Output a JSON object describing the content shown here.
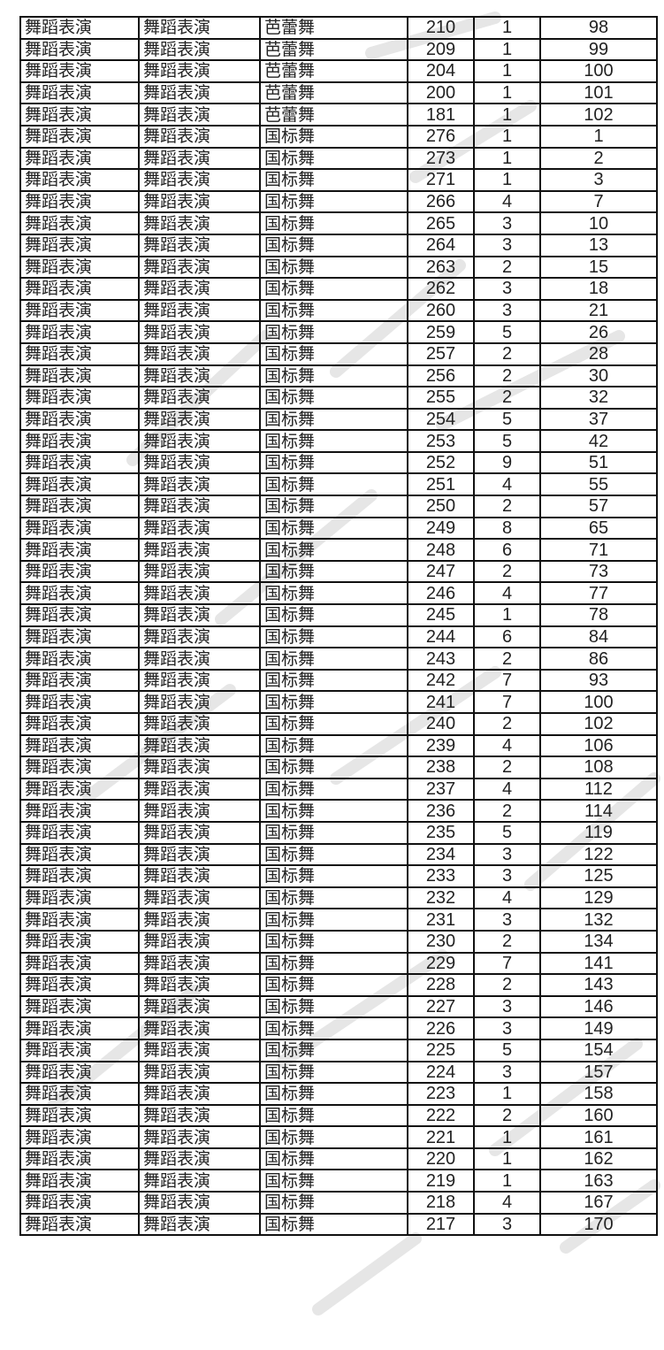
{
  "table": {
    "rows": [
      [
        "舞蹈表演",
        "舞蹈表演",
        "芭蕾舞",
        "210",
        "1",
        "98"
      ],
      [
        "舞蹈表演",
        "舞蹈表演",
        "芭蕾舞",
        "209",
        "1",
        "99"
      ],
      [
        "舞蹈表演",
        "舞蹈表演",
        "芭蕾舞",
        "204",
        "1",
        "100"
      ],
      [
        "舞蹈表演",
        "舞蹈表演",
        "芭蕾舞",
        "200",
        "1",
        "101"
      ],
      [
        "舞蹈表演",
        "舞蹈表演",
        "芭蕾舞",
        "181",
        "1",
        "102"
      ],
      [
        "舞蹈表演",
        "舞蹈表演",
        "国标舞",
        "276",
        "1",
        "1"
      ],
      [
        "舞蹈表演",
        "舞蹈表演",
        "国标舞",
        "273",
        "1",
        "2"
      ],
      [
        "舞蹈表演",
        "舞蹈表演",
        "国标舞",
        "271",
        "1",
        "3"
      ],
      [
        "舞蹈表演",
        "舞蹈表演",
        "国标舞",
        "266",
        "4",
        "7"
      ],
      [
        "舞蹈表演",
        "舞蹈表演",
        "国标舞",
        "265",
        "3",
        "10"
      ],
      [
        "舞蹈表演",
        "舞蹈表演",
        "国标舞",
        "264",
        "3",
        "13"
      ],
      [
        "舞蹈表演",
        "舞蹈表演",
        "国标舞",
        "263",
        "2",
        "15"
      ],
      [
        "舞蹈表演",
        "舞蹈表演",
        "国标舞",
        "262",
        "3",
        "18"
      ],
      [
        "舞蹈表演",
        "舞蹈表演",
        "国标舞",
        "260",
        "3",
        "21"
      ],
      [
        "舞蹈表演",
        "舞蹈表演",
        "国标舞",
        "259",
        "5",
        "26"
      ],
      [
        "舞蹈表演",
        "舞蹈表演",
        "国标舞",
        "257",
        "2",
        "28"
      ],
      [
        "舞蹈表演",
        "舞蹈表演",
        "国标舞",
        "256",
        "2",
        "30"
      ],
      [
        "舞蹈表演",
        "舞蹈表演",
        "国标舞",
        "255",
        "2",
        "32"
      ],
      [
        "舞蹈表演",
        "舞蹈表演",
        "国标舞",
        "254",
        "5",
        "37"
      ],
      [
        "舞蹈表演",
        "舞蹈表演",
        "国标舞",
        "253",
        "5",
        "42"
      ],
      [
        "舞蹈表演",
        "舞蹈表演",
        "国标舞",
        "252",
        "9",
        "51"
      ],
      [
        "舞蹈表演",
        "舞蹈表演",
        "国标舞",
        "251",
        "4",
        "55"
      ],
      [
        "舞蹈表演",
        "舞蹈表演",
        "国标舞",
        "250",
        "2",
        "57"
      ],
      [
        "舞蹈表演",
        "舞蹈表演",
        "国标舞",
        "249",
        "8",
        "65"
      ],
      [
        "舞蹈表演",
        "舞蹈表演",
        "国标舞",
        "248",
        "6",
        "71"
      ],
      [
        "舞蹈表演",
        "舞蹈表演",
        "国标舞",
        "247",
        "2",
        "73"
      ],
      [
        "舞蹈表演",
        "舞蹈表演",
        "国标舞",
        "246",
        "4",
        "77"
      ],
      [
        "舞蹈表演",
        "舞蹈表演",
        "国标舞",
        "245",
        "1",
        "78"
      ],
      [
        "舞蹈表演",
        "舞蹈表演",
        "国标舞",
        "244",
        "6",
        "84"
      ],
      [
        "舞蹈表演",
        "舞蹈表演",
        "国标舞",
        "243",
        "2",
        "86"
      ],
      [
        "舞蹈表演",
        "舞蹈表演",
        "国标舞",
        "242",
        "7",
        "93"
      ],
      [
        "舞蹈表演",
        "舞蹈表演",
        "国标舞",
        "241",
        "7",
        "100"
      ],
      [
        "舞蹈表演",
        "舞蹈表演",
        "国标舞",
        "240",
        "2",
        "102"
      ],
      [
        "舞蹈表演",
        "舞蹈表演",
        "国标舞",
        "239",
        "4",
        "106"
      ],
      [
        "舞蹈表演",
        "舞蹈表演",
        "国标舞",
        "238",
        "2",
        "108"
      ],
      [
        "舞蹈表演",
        "舞蹈表演",
        "国标舞",
        "237",
        "4",
        "112"
      ],
      [
        "舞蹈表演",
        "舞蹈表演",
        "国标舞",
        "236",
        "2",
        "114"
      ],
      [
        "舞蹈表演",
        "舞蹈表演",
        "国标舞",
        "235",
        "5",
        "119"
      ],
      [
        "舞蹈表演",
        "舞蹈表演",
        "国标舞",
        "234",
        "3",
        "122"
      ],
      [
        "舞蹈表演",
        "舞蹈表演",
        "国标舞",
        "233",
        "3",
        "125"
      ],
      [
        "舞蹈表演",
        "舞蹈表演",
        "国标舞",
        "232",
        "4",
        "129"
      ],
      [
        "舞蹈表演",
        "舞蹈表演",
        "国标舞",
        "231",
        "3",
        "132"
      ],
      [
        "舞蹈表演",
        "舞蹈表演",
        "国标舞",
        "230",
        "2",
        "134"
      ],
      [
        "舞蹈表演",
        "舞蹈表演",
        "国标舞",
        "229",
        "7",
        "141"
      ],
      [
        "舞蹈表演",
        "舞蹈表演",
        "国标舞",
        "228",
        "2",
        "143"
      ],
      [
        "舞蹈表演",
        "舞蹈表演",
        "国标舞",
        "227",
        "3",
        "146"
      ],
      [
        "舞蹈表演",
        "舞蹈表演",
        "国标舞",
        "226",
        "3",
        "149"
      ],
      [
        "舞蹈表演",
        "舞蹈表演",
        "国标舞",
        "225",
        "5",
        "154"
      ],
      [
        "舞蹈表演",
        "舞蹈表演",
        "国标舞",
        "224",
        "3",
        "157"
      ],
      [
        "舞蹈表演",
        "舞蹈表演",
        "国标舞",
        "223",
        "1",
        "158"
      ],
      [
        "舞蹈表演",
        "舞蹈表演",
        "国标舞",
        "222",
        "2",
        "160"
      ],
      [
        "舞蹈表演",
        "舞蹈表演",
        "国标舞",
        "221",
        "1",
        "161"
      ],
      [
        "舞蹈表演",
        "舞蹈表演",
        "国标舞",
        "220",
        "1",
        "162"
      ],
      [
        "舞蹈表演",
        "舞蹈表演",
        "国标舞",
        "219",
        "1",
        "163"
      ],
      [
        "舞蹈表演",
        "舞蹈表演",
        "国标舞",
        "218",
        "4",
        "167"
      ],
      [
        "舞蹈表演",
        "舞蹈表演",
        "国标舞",
        "217",
        "3",
        "170"
      ]
    ]
  },
  "colors": {
    "border": "#111111",
    "text": "#222222",
    "watermark": "#e4e4e4"
  }
}
